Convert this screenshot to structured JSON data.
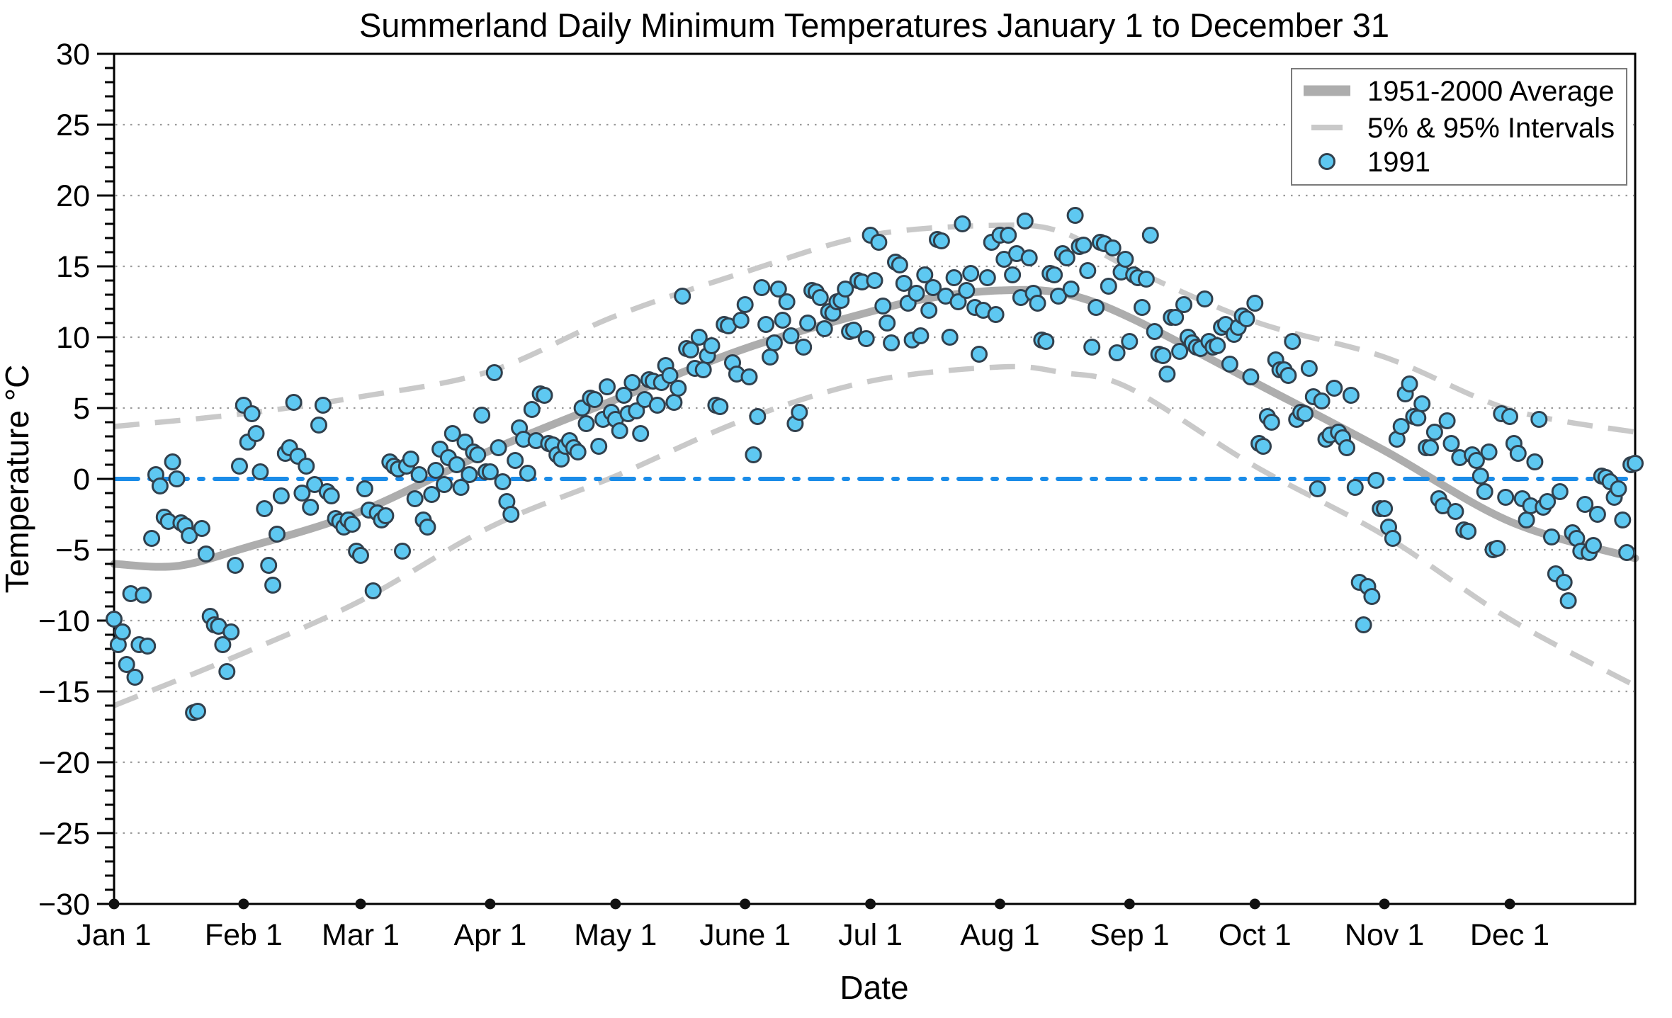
{
  "chart_data": {
    "type": "scatter",
    "title": "Summerland Daily Minimum Temperatures January 1 to December 31",
    "xlabel": "Date",
    "ylabel": "Temperature °C",
    "ylim": [
      -30,
      30
    ],
    "xlim_days": [
      0,
      364
    ],
    "grid": "horizontal dotted lines at every 5 degrees",
    "legend_position": "top-right-inside",
    "y_axis": {
      "tick_values": [
        30,
        25,
        20,
        15,
        10,
        5,
        0,
        -5,
        -10,
        -15,
        -20,
        -25,
        -30
      ],
      "tick_labels": [
        "30",
        "25",
        "20",
        "15",
        "10",
        "5",
        "0",
        "−5",
        "−10",
        "−15",
        "−20",
        "−25",
        "−30"
      ],
      "minor_tick_step": 1
    },
    "x_axis": {
      "tick_days": [
        0,
        31,
        59,
        90,
        120,
        151,
        181,
        212,
        243,
        273,
        304,
        334
      ],
      "tick_labels": [
        "Jan 1",
        "Feb 1",
        "Mar 1",
        "Apr 1",
        "May 1",
        "June 1",
        "Jul 1",
        "Aug 1",
        "Sep 1",
        "Oct 1",
        "Nov 1",
        "Dec 1"
      ]
    },
    "zero_line": {
      "value": 0,
      "style": "dash-dot"
    },
    "legend": [
      {
        "label": "1951-2000 Average",
        "swatch": "thick-gray-line"
      },
      {
        "label": "5% & 95% Intervals",
        "swatch": "gray-dash"
      },
      {
        "label": "1991",
        "swatch": "blue-circle"
      }
    ],
    "series": [
      {
        "name": "1951-2000 Average",
        "type": "line",
        "anchor_days": [
          0,
          15,
          31,
          59,
          90,
          120,
          151,
          181,
          196,
          212,
          227,
          243,
          273,
          304,
          334,
          364
        ],
        "values": [
          -6.0,
          -6.15,
          -4.9,
          -2.3,
          2.0,
          5.6,
          9.2,
          11.8,
          12.8,
          13.3,
          13.1,
          11.4,
          6.8,
          2.0,
          -3.0,
          -5.6
        ]
      },
      {
        "name": "95% Interval",
        "type": "dashed-line",
        "anchor_days": [
          0,
          31,
          59,
          90,
          120,
          151,
          181,
          212,
          227,
          243,
          273,
          304,
          334,
          364
        ],
        "values": [
          3.7,
          4.6,
          5.8,
          7.6,
          11.5,
          14.6,
          17.2,
          17.9,
          17.4,
          14.9,
          11.1,
          8.6,
          4.9,
          3.3
        ]
      },
      {
        "name": "5% Interval",
        "type": "dashed-line",
        "anchor_days": [
          0,
          31,
          59,
          90,
          120,
          151,
          181,
          212,
          227,
          243,
          273,
          304,
          334,
          364
        ],
        "values": [
          -16.0,
          -12.3,
          -8.6,
          -3.4,
          0.2,
          4.2,
          6.9,
          7.9,
          7.5,
          6.4,
          0.9,
          -4.0,
          -9.9,
          -14.6
        ]
      },
      {
        "name": "1991",
        "type": "scatter",
        "monthly_values": [
          [
            -9.9,
            -11.7,
            -10.8,
            -13.1,
            -8.1,
            -14.0,
            -11.7,
            -8.2,
            -11.8,
            -4.2,
            0.3,
            -0.5,
            -2.7,
            -3.0,
            1.2,
            0.0,
            -3.1,
            -3.3,
            -4.0,
            -16.5,
            -16.4,
            -3.5,
            -5.3,
            -9.7,
            -10.3,
            -10.4,
            -11.7,
            -13.6,
            -10.8,
            -6.1,
            0.9
          ],
          [
            5.2,
            2.6,
            4.6,
            3.2,
            0.5,
            -2.1,
            -6.1,
            -7.5,
            -3.9,
            -1.2,
            1.8,
            2.2,
            5.4,
            1.6,
            -1.0,
            0.9,
            -2.0,
            -0.4,
            3.8,
            5.2,
            -0.9,
            -1.2,
            -2.8,
            -3.0,
            -3.4,
            -2.9,
            -3.2,
            -5.1
          ],
          [
            -5.4,
            -0.7,
            -2.2,
            -7.9,
            -2.4,
            -2.9,
            -2.6,
            1.2,
            0.9,
            0.7,
            -5.1,
            0.9,
            1.4,
            -1.4,
            0.3,
            -2.9,
            -3.4,
            -1.1,
            0.6,
            2.1,
            -0.4,
            1.5,
            3.2,
            1.0,
            -0.6,
            2.6,
            0.3,
            1.9,
            1.7,
            4.5,
            0.5
          ],
          [
            0.5,
            7.5,
            2.2,
            -0.2,
            -1.6,
            -2.5,
            1.3,
            3.6,
            2.8,
            0.4,
            4.9,
            2.7,
            6.0,
            5.9,
            2.5,
            2.4,
            1.7,
            1.4,
            2.3,
            2.7,
            2.2,
            1.9,
            5.0,
            3.9,
            5.7,
            5.6,
            2.3,
            4.2,
            6.5,
            4.7
          ],
          [
            4.2,
            3.4,
            5.9,
            4.6,
            6.8,
            4.8,
            3.2,
            5.6,
            7.0,
            6.9,
            5.2,
            6.8,
            8.0,
            7.3,
            5.4,
            6.4,
            12.9,
            9.2,
            9.1,
            7.8,
            10.0,
            7.7,
            8.7,
            9.4,
            5.2,
            5.1,
            10.9,
            10.8,
            8.2,
            7.4,
            11.2
          ],
          [
            12.3,
            7.2,
            1.7,
            4.4,
            13.5,
            10.9,
            8.6,
            9.6,
            13.4,
            11.2,
            12.5,
            10.1,
            3.9,
            4.7,
            9.3,
            11.0,
            13.3,
            13.2,
            12.8,
            10.6,
            11.8,
            11.7,
            12.5,
            12.6,
            13.4,
            10.4,
            10.5,
            14.0,
            13.9,
            9.9
          ],
          [
            17.2,
            14.0,
            16.7,
            12.2,
            11.0,
            9.6,
            15.3,
            15.1,
            13.8,
            12.4,
            9.8,
            13.1,
            10.1,
            14.4,
            11.9,
            13.5,
            16.9,
            16.8,
            12.9,
            10.0,
            14.2,
            12.5,
            18.0,
            13.3,
            14.5,
            12.1,
            8.8,
            11.9,
            14.2,
            16.7,
            11.6
          ],
          [
            17.2,
            15.5,
            17.2,
            14.4,
            15.9,
            12.8,
            18.2,
            15.6,
            13.1,
            12.4,
            9.8,
            9.7,
            14.5,
            14.4,
            12.9,
            15.9,
            15.6,
            13.4,
            18.6,
            16.4,
            16.5,
            14.7,
            9.3,
            12.1,
            16.7,
            16.6,
            13.6,
            16.3,
            8.9,
            14.6,
            15.5
          ],
          [
            9.7,
            14.4,
            14.2,
            12.1,
            14.1,
            17.2,
            10.4,
            8.8,
            8.7,
            7.4,
            11.4,
            11.4,
            9.0,
            12.3,
            10.0,
            9.6,
            9.3,
            9.2,
            12.7,
            9.7,
            9.3,
            9.4,
            10.7,
            10.9,
            8.1,
            10.2,
            10.7,
            11.5,
            11.3,
            7.2
          ],
          [
            12.4,
            2.5,
            2.3,
            4.4,
            4.0,
            8.4,
            7.7,
            7.7,
            7.3,
            9.7,
            4.2,
            4.7,
            4.6,
            7.8,
            5.8,
            -0.7,
            5.5,
            2.8,
            3.1,
            6.4,
            3.3,
            2.9,
            2.2,
            5.9,
            -0.6,
            -7.3,
            -10.3,
            -7.6,
            -8.3,
            -0.1,
            -2.1
          ],
          [
            -2.1,
            -3.4,
            -4.2,
            2.8,
            3.7,
            6.0,
            6.7,
            4.4,
            4.3,
            5.3,
            2.2,
            2.2,
            3.3,
            -1.4,
            -1.9,
            4.1,
            2.5,
            -2.3,
            1.5,
            -3.6,
            -3.7,
            1.7,
            1.3,
            0.2,
            -0.9,
            1.9,
            -5.0,
            -4.9,
            4.6,
            -1.3
          ],
          [
            4.4,
            2.5,
            1.8,
            -1.4,
            -2.9,
            -1.9,
            1.2,
            4.2,
            -2.0,
            -1.6,
            -4.1,
            -6.7,
            -0.9,
            -7.3,
            -8.6,
            -3.8,
            -4.2,
            -5.1,
            -1.8,
            -5.2,
            -4.7,
            -2.5,
            0.2,
            0.1,
            -0.2,
            -1.3,
            -0.7,
            -2.9,
            -5.2,
            1.0,
            1.1
          ]
        ]
      }
    ],
    "colors": {
      "average_line": "#adadad",
      "interval_line": "#c9c9c9",
      "scatter_fill": "#5ec8f1",
      "scatter_edge": "#31404d",
      "zero_line": "#1b8ce8",
      "grid_dots": "#9a9a9a",
      "axis": "#000000",
      "legend_border": "#7a7a7a",
      "month_marker": "#111111"
    }
  }
}
